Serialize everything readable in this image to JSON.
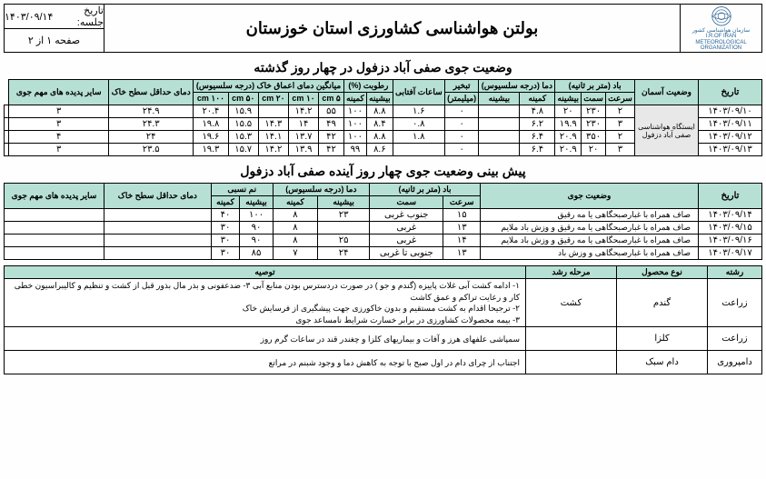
{
  "header": {
    "org_line1": "سازمان هواشناسی کشور",
    "org_line2": "I.R.OF IRAN",
    "org_line3": "METEOROLOGICAL",
    "org_line4": "ORGANIZATION",
    "title": "بولتن هواشناسی کشاورزی استان خوزستان",
    "date_label": "تاریخ جلسه:",
    "date_value": "۱۴۰۳/۰۹/۱۴",
    "page_label": "صفحه  ۱  از  ۲"
  },
  "past": {
    "title": "وضعیت جوی صفی آباد دزفول در چهار روز گذشته",
    "headers": {
      "date": "تاریخ",
      "sky": "وضعیت آسمان",
      "wind": "باد (متر بر ثانیه)",
      "wind_speed": "سرعت",
      "wind_dir": "سمت",
      "wind_max": "بیشینه",
      "temp": "دما (درجه سلسیوس)",
      "temp_min": "کمینه",
      "temp_max": "بیشینه",
      "evap": "تبخیر",
      "evap_unit": "(میلیمتر)",
      "sun": "ساعات آفتابی",
      "hum": "رطوبت (%)",
      "hum_max": "بیشینه",
      "hum_min": "کمینه",
      "soil": "میانگین دمای اعماق خاک (درجه سلسیوس)",
      "s5": "۵ cm",
      "s10": "۱۰ cm",
      "s20": "۲۰ cm",
      "s50": "۵۰ cm",
      "s100": "۱۰۰ cm",
      "tminsoil": "دمای حداقل سطح خاک",
      "phenom": "سایر پدیده های مهم جوی",
      "station": "ایستگاه هواشناسی صفی آباد دزفول"
    },
    "rows": [
      {
        "date": "۱۴۰۳/۰۹/۱۰",
        "ws": "۲",
        "wd": "۲۳۰",
        "wmx": "۲۰",
        "tmin": "۴.۸",
        "tmax": "",
        "ev": "۰",
        "sun": "۱.۶",
        "hmx": "۸.۸",
        "hmn": "سبک",
        "h1": "۱۰۰",
        "h2": "۵۵",
        "s5": "۱۴.۲",
        "s10": "",
        "s20": "۱۵.۹",
        "s50": "۲۰.۴",
        "s100": "۲۴.۹",
        "tms": "۳",
        "ph": ""
      },
      {
        "date": "۱۴۰۳/۰۹/۱۱",
        "ws": "۳",
        "wd": "۲۳۰",
        "wmx": "۱۹.۹",
        "tmin": "۶.۲",
        "tmax": "",
        "ev": "۰",
        "sun": "۰.۸",
        "hmx": "۸.۴",
        "hmn": "",
        "h1": "۱۰۰",
        "h2": "۴۹",
        "s5": "۱۴",
        "s10": "۱۴.۳",
        "s20": "۱۵.۵",
        "s50": "۱۹.۸",
        "s100": "۲۴.۳",
        "tms": "۳",
        "ph": ""
      },
      {
        "date": "۱۴۰۳/۰۹/۱۲",
        "ws": "۲",
        "wd": "۳۵۰",
        "wmx": "۲۰.۹",
        "tmin": "۶.۴",
        "tmax": "",
        "ev": "۰",
        "sun": "۱.۸",
        "hmx": "۸.۸",
        "hmn": "",
        "h1": "۱۰۰",
        "h2": "۴۲",
        "s5": "۱۳.۷",
        "s10": "۱۴.۱",
        "s20": "۱۵.۳",
        "s50": "۱۹.۶",
        "s100": "۲۴",
        "tms": "۴",
        "ph": ""
      },
      {
        "date": "۱۴۰۳/۰۹/۱۳",
        "ws": "۳",
        "wd": "۲۰",
        "wmx": "۲۰.۹",
        "tmin": "۶.۴",
        "tmax": "",
        "ev": "۰",
        "sun": "",
        "hmx": "۸.۶",
        "hmn": "",
        "h1": "۹۹",
        "h2": "۴۲",
        "s5": "۱۳.۹",
        "s10": "۱۴.۲",
        "s20": "۱۵.۷",
        "s50": "۱۹.۳",
        "s100": "۲۳.۵",
        "tms": "۳",
        "ph": ""
      }
    ]
  },
  "forecast": {
    "title": "پیش بینی وضعیت جوی چهار روز آینده صفی آباد دزفول",
    "headers": {
      "date": "تاریخ",
      "cond": "وضعیت جوی",
      "wind": "باد (متر بر ثانیه)",
      "ws": "سرعت",
      "wd": "سمت",
      "temp": "دما (درجه سلسیوس)",
      "tmax": "بیشینه",
      "tmin": "کمینه",
      "rh": "نم نسبی",
      "rmax": "بیشینه",
      "rmin": "کمینه",
      "tminsoil": "دمای حداقل سطح خاک",
      "phenom": "سایر پدیده های مهم جوی"
    },
    "rows": [
      {
        "date": "۱۴۰۳/۰۹/۱۴",
        "cond": "صاف همراه با غبارصبحگاهی یا مه رقیق",
        "ws": "۱۵",
        "wd": "جنوب غربی",
        "tmax": "۲۳",
        "tmin": "۸",
        "rmax": "۱۰۰",
        "rmin": "۴۰",
        "tms": "",
        "ph": ""
      },
      {
        "date": "۱۴۰۳/۰۹/۱۵",
        "cond": "صاف همراه با غبارصبحگاهی یا مه رقیق و وزش باد ملایم",
        "ws": "۱۳",
        "wd": "غربی",
        "tmax": "",
        "tmin": "۸",
        "rmax": "۹۰",
        "rmin": "۳۰",
        "tms": "",
        "ph": ""
      },
      {
        "date": "۱۴۰۳/۰۹/۱۶",
        "cond": "صاف همراه با غبارصبحگاهی یا مه رقیق و وزش باد ملایم",
        "ws": "۱۴",
        "wd": "غربی",
        "tmax": "۲۵",
        "tmin": "۸",
        "rmax": "۹۰",
        "rmin": "۳۰",
        "tms": "",
        "ph": ""
      },
      {
        "date": "۱۴۰۳/۰۹/۱۷",
        "cond": "صاف همراه با غبارصبحگاهی و وزش باد",
        "ws": "۱۳",
        "wd": "جنوبی تا غربی",
        "tmax": "۲۴",
        "tmin": "۷",
        "rmax": "۸۵",
        "rmin": "۳۰",
        "tms": "",
        "ph": ""
      }
    ]
  },
  "crops": {
    "headers": {
      "field": "رشته",
      "crop": "نوع محصول",
      "stage": "مرحله رشد",
      "rec": "توصیه"
    },
    "rows": [
      {
        "field": "زراعت",
        "crop": "گندم",
        "stage": "کشت",
        "rec": "۱- ادامه کشت آبی غلات پاییزه (گندم و جو ) در صورت دردسترس بودن منابع آبی ۳-  ضدعفونی و بذر مال بذور قبل از کشت و تنظیم و کالیبراسیون خطی کار و رعایت تراکم و عمق کاشت\n۲- ترجیحا اقدام به کشت مستقیم و بدون خاکورزی جهت پیشگیری از فرسایش خاک\n۳- بیمه محصولات کشاورزی  در برابر خسارت شرایط نامساعد جوی"
      },
      {
        "field": "زراعت",
        "crop": "کلزا",
        "stage": "",
        "rec": "سمپاشی علفهای هرز و آفات و بیماریهای کلزا و چغندر قند در ساعات گرم روز"
      },
      {
        "field": "دامپروری",
        "crop": "دام سبک",
        "stage": "",
        "rec": "اجتناب از چرای دام در اول صبح با توجه به کاهش دما و وجود شبنم در مراتع"
      }
    ]
  }
}
